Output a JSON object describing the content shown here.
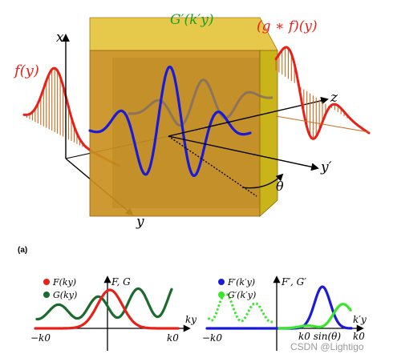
{
  "main_figure": {
    "labels": {
      "x_axis": "x",
      "y_axis": "y",
      "z_axis": "z",
      "y_prime_axis": "y′",
      "theta": "θ",
      "input_function": "f(y)",
      "filter": "G′(k′y)",
      "output_function": "(g ∗ f)(y)"
    },
    "colors": {
      "input_curve": "#e8201a",
      "output_curve": "#e8201a",
      "stems": "#c96a1f",
      "filter_slab_front": "#c98f1e",
      "filter_slab_top": "#e6c84a",
      "filter_slab_side": "#c9b51a",
      "kernel_wave": "#1a1ad8"
    }
  },
  "panel_label": "(a)",
  "left_plot": {
    "legend": [
      {
        "name": "F(ky)",
        "color": "#e8201a"
      },
      {
        "name": "G(ky)",
        "color": "#1b6b2e"
      }
    ],
    "y_label": "F, G",
    "x_label": "ky",
    "tick_left": "−k0",
    "tick_right": "k0"
  },
  "right_plot": {
    "legend": [
      {
        "name": "F′(k′y)",
        "color": "#1a1ad8"
      },
      {
        "name": "G′(k′y)",
        "color": "#39e62a"
      }
    ],
    "y_label": "F′, G′",
    "x_label": "k′y",
    "tick_left": "−k0",
    "tick_mid": "k0 sin(θ)",
    "tick_right": "k0"
  },
  "watermark": "CSDN @Lightigo"
}
